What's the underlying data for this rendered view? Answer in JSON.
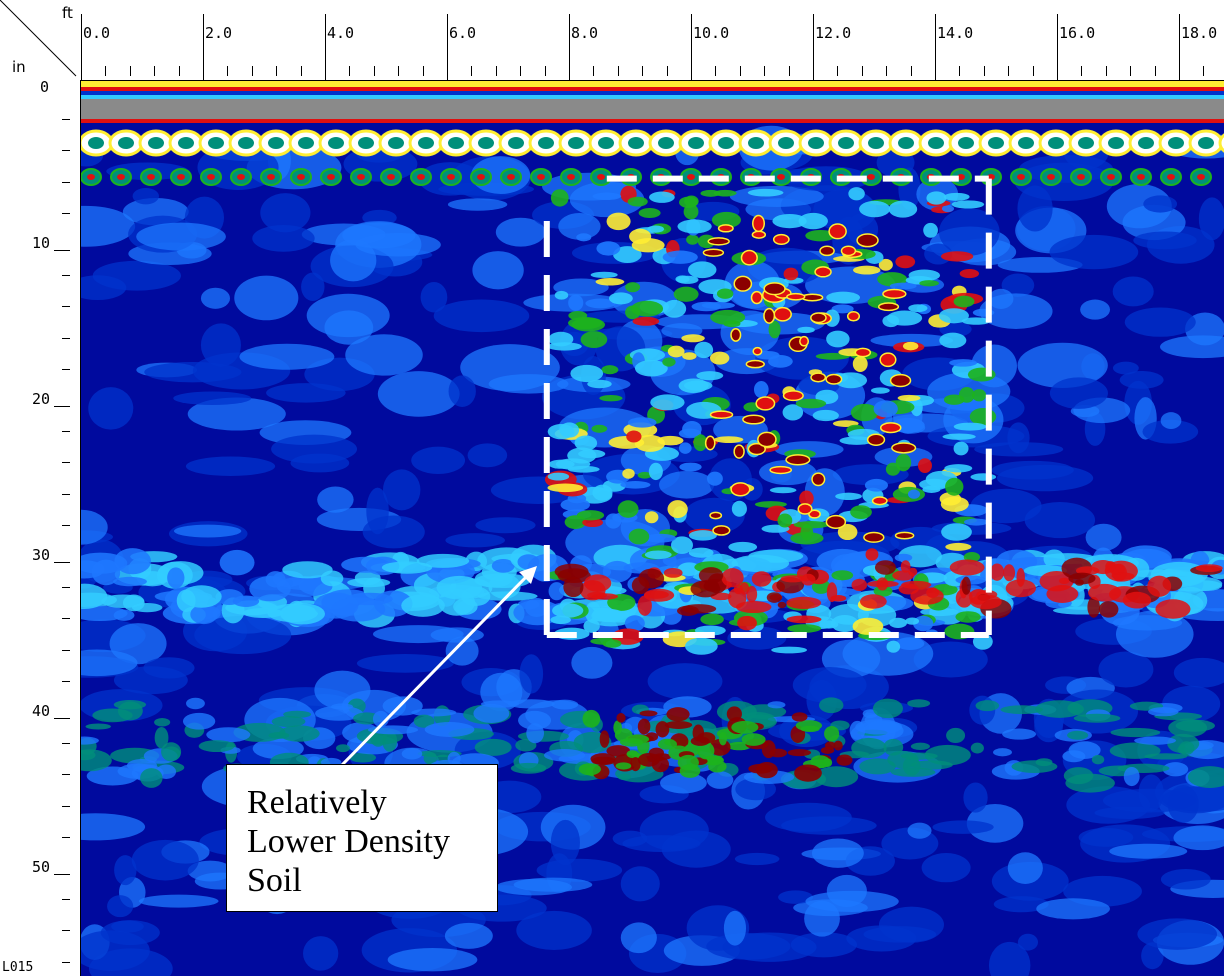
{
  "scale": {
    "x_unit": "ft",
    "y_unit": "in",
    "x_ticks": [
      "0.0",
      "2.0",
      "4.0",
      "6.0",
      "8.0",
      "10.0",
      "12.0",
      "14.0",
      "16.0",
      "18.0"
    ],
    "y_ticks": [
      "0",
      "10",
      "20",
      "30",
      "40",
      "50"
    ],
    "x_range_ft": [
      0,
      18.8
    ],
    "y_range_in": [
      0,
      57
    ],
    "corner_id": "L015"
  },
  "annotation": {
    "text": "Relatively\nLower Density\nSoil",
    "box_color": "#ffffff",
    "dashed_region_ft": [
      7.8,
      14.8
    ],
    "dashed_region_in": [
      6,
      35
    ]
  },
  "colors": {
    "background_deep": "#000a9e",
    "blue": "#0033cc",
    "light_blue": "#1e78ff",
    "cyan": "#33ccff",
    "teal": "#008f7a",
    "green": "#1db31d",
    "yellow": "#ffee33",
    "red": "#e01010",
    "dark_red": "#8b0000",
    "white": "#ffffff",
    "gray": "#8a8a8a"
  }
}
